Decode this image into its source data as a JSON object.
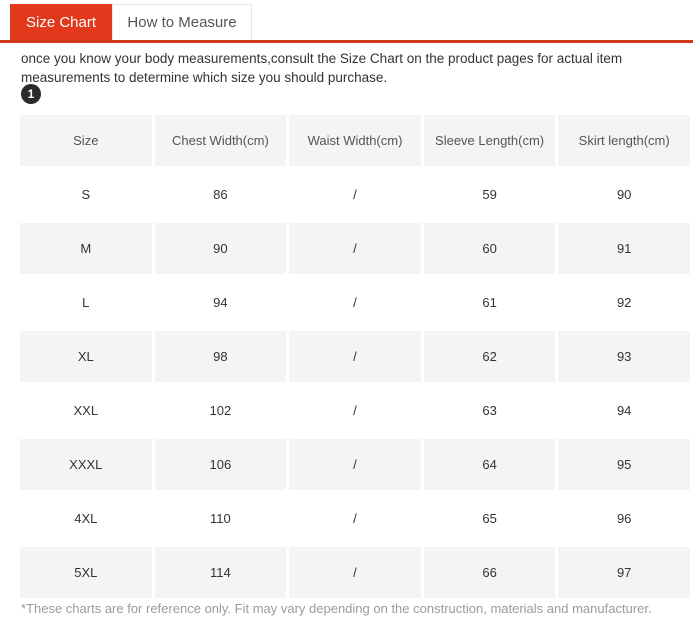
{
  "tabs": {
    "items": [
      {
        "label": "Size Chart",
        "active": true
      },
      {
        "label": "How to Measure",
        "active": false
      }
    ]
  },
  "intro_text": "once you know your body measurements,consult the Size Chart on the product pages for actual item measurements to determine which size you should purchase.",
  "step_badge": "1",
  "size_table": {
    "headers": [
      "Size",
      "Chest Width(cm)",
      "Waist Width(cm)",
      "Sleeve Length(cm)",
      "Skirt length(cm)"
    ],
    "rows": [
      [
        "S",
        "86",
        "/",
        "59",
        "90"
      ],
      [
        "M",
        "90",
        "/",
        "60",
        "91"
      ],
      [
        "L",
        "94",
        "/",
        "61",
        "92"
      ],
      [
        "XL",
        "98",
        "/",
        "62",
        "93"
      ],
      [
        "XXL",
        "102",
        "/",
        "63",
        "94"
      ],
      [
        "XXXL",
        "106",
        "/",
        "64",
        "95"
      ],
      [
        "4XL",
        "110",
        "/",
        "65",
        "96"
      ],
      [
        "5XL",
        "114",
        "/",
        "66",
        "97"
      ]
    ]
  },
  "footnote": "*These charts are for reference only. Fit may vary depending on the construction, materials and manufacturer.",
  "colors": {
    "accent": "#e2391c",
    "tab_underline": "#cf3a1e",
    "cell_background": "#f4f4f4",
    "body_text": "#333333",
    "muted_text": "#9b9b9b"
  }
}
